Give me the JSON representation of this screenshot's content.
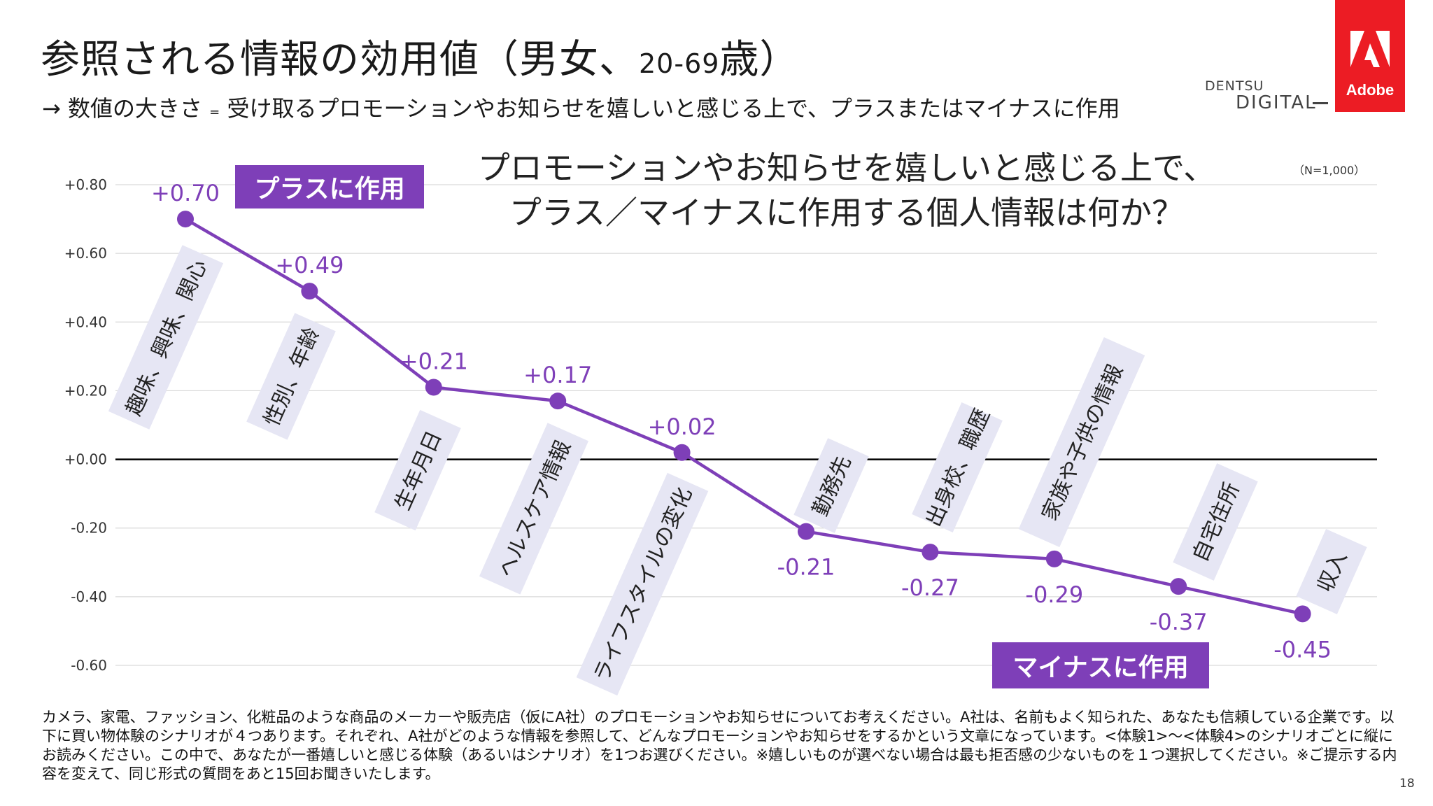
{
  "header": {
    "title_main": "参照される情報の効用値（男女、",
    "title_age": "20-69",
    "title_end": "歳）",
    "subtitle_arrow": "→",
    "subtitle_a": "数値の大きさ",
    "subtitle_eq": "=",
    "subtitle_b": "受け取るプロモーションやお知らせを嬉しいと感じる上で、プラスまたはマイナスに作用",
    "dentsu_line1": "DENTSU",
    "dentsu_line2": "DIGITAL",
    "adobe_label": "Adobe"
  },
  "chart_heading": {
    "line1": "プロモーションやお知らせを嬉しいと感じる上で、",
    "line2": "プラス／マイナスに作用する個人情報は何か？"
  },
  "sample_size": "（N=1,000）",
  "tags": {
    "plus": "プラスに作用",
    "minus": "マイナスに作用"
  },
  "chart_data": {
    "type": "line",
    "title": "プロモーションやお知らせを嬉しいと感じる上で、プラス／マイナスに作用する個人情報は何か？",
    "categories": [
      "趣味、興味、関心",
      "性別、年齢",
      "生年月日",
      "ヘルスケア情報",
      "ライフスタイルの変化",
      "勤務先",
      "出身校、職歴",
      "家族や子供の情報",
      "自宅住所",
      "収入"
    ],
    "series": [
      {
        "values": [
          0.7,
          0.49,
          0.21,
          0.17,
          0.02,
          -0.21,
          -0.27,
          -0.29,
          -0.37,
          -0.45
        ]
      }
    ],
    "data_labels": [
      "+0.70",
      "+0.49",
      "+0.21",
      "+0.17",
      "+0.02",
      "-0.21",
      "-0.27",
      "-0.29",
      "-0.37",
      "-0.45"
    ],
    "y_ticks": [
      "+0.80",
      "+0.60",
      "+0.40",
      "+0.20",
      "+0.00",
      "-0.20",
      "-0.40",
      "-0.60"
    ],
    "y_tick_values": [
      0.8,
      0.6,
      0.4,
      0.2,
      0.0,
      -0.2,
      -0.4,
      -0.6
    ],
    "ylim": [
      -0.6,
      0.8
    ],
    "grid": true,
    "colors": {
      "line": "#7e3fb8",
      "label_box": "#e6e6f4",
      "grid": "#d9d9d9",
      "zero": "#000000"
    }
  },
  "question_note": "カメラ、家電、ファッション、化粧品のような商品のメーカーや販売店（仮にA社）のプロモーションやお知らせについてお考えください。A社は、名前もよく知られた、あなたも信頼している企業です。以下に買い物体験のシナリオが４つあります。それぞれ、A社がどのような情報を参照して、どんなプロモーションやお知らせをするかという文章になっています。<体験1>〜<体験4>のシナリオごとに縦にお読みください。この中で、あなたが一番嬉しいと感じる体験（あるいはシナリオ）を1つお選びください。※嬉しいものが選べない場合は最も拒否感の少ないものを１つ選択してください。※ご提示する内容を変えて、同じ形式の質問をあと15回お聞きいたします。",
  "page_number": "18"
}
